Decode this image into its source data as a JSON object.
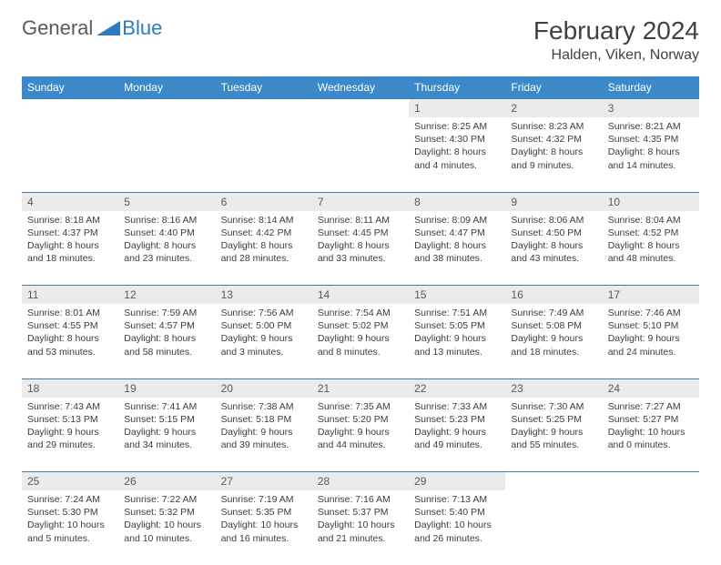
{
  "logo": {
    "general": "General",
    "blue": "Blue"
  },
  "header": {
    "month": "February 2024",
    "location": "Halden, Viken, Norway"
  },
  "weekdays": [
    "Sunday",
    "Monday",
    "Tuesday",
    "Wednesday",
    "Thursday",
    "Friday",
    "Saturday"
  ],
  "colors": {
    "header_bg": "#3b89c9",
    "border": "#3b7db5",
    "daynum_bg": "#ebebeb",
    "logo_blue": "#2b7bbf",
    "text": "#3c3c3c"
  },
  "weeks": [
    [
      null,
      null,
      null,
      null,
      {
        "n": "1",
        "sr": "Sunrise: 8:25 AM",
        "ss": "Sunset: 4:30 PM",
        "d1": "Daylight: 8 hours",
        "d2": "and 4 minutes."
      },
      {
        "n": "2",
        "sr": "Sunrise: 8:23 AM",
        "ss": "Sunset: 4:32 PM",
        "d1": "Daylight: 8 hours",
        "d2": "and 9 minutes."
      },
      {
        "n": "3",
        "sr": "Sunrise: 8:21 AM",
        "ss": "Sunset: 4:35 PM",
        "d1": "Daylight: 8 hours",
        "d2": "and 14 minutes."
      }
    ],
    [
      {
        "n": "4",
        "sr": "Sunrise: 8:18 AM",
        "ss": "Sunset: 4:37 PM",
        "d1": "Daylight: 8 hours",
        "d2": "and 18 minutes."
      },
      {
        "n": "5",
        "sr": "Sunrise: 8:16 AM",
        "ss": "Sunset: 4:40 PM",
        "d1": "Daylight: 8 hours",
        "d2": "and 23 minutes."
      },
      {
        "n": "6",
        "sr": "Sunrise: 8:14 AM",
        "ss": "Sunset: 4:42 PM",
        "d1": "Daylight: 8 hours",
        "d2": "and 28 minutes."
      },
      {
        "n": "7",
        "sr": "Sunrise: 8:11 AM",
        "ss": "Sunset: 4:45 PM",
        "d1": "Daylight: 8 hours",
        "d2": "and 33 minutes."
      },
      {
        "n": "8",
        "sr": "Sunrise: 8:09 AM",
        "ss": "Sunset: 4:47 PM",
        "d1": "Daylight: 8 hours",
        "d2": "and 38 minutes."
      },
      {
        "n": "9",
        "sr": "Sunrise: 8:06 AM",
        "ss": "Sunset: 4:50 PM",
        "d1": "Daylight: 8 hours",
        "d2": "and 43 minutes."
      },
      {
        "n": "10",
        "sr": "Sunrise: 8:04 AM",
        "ss": "Sunset: 4:52 PM",
        "d1": "Daylight: 8 hours",
        "d2": "and 48 minutes."
      }
    ],
    [
      {
        "n": "11",
        "sr": "Sunrise: 8:01 AM",
        "ss": "Sunset: 4:55 PM",
        "d1": "Daylight: 8 hours",
        "d2": "and 53 minutes."
      },
      {
        "n": "12",
        "sr": "Sunrise: 7:59 AM",
        "ss": "Sunset: 4:57 PM",
        "d1": "Daylight: 8 hours",
        "d2": "and 58 minutes."
      },
      {
        "n": "13",
        "sr": "Sunrise: 7:56 AM",
        "ss": "Sunset: 5:00 PM",
        "d1": "Daylight: 9 hours",
        "d2": "and 3 minutes."
      },
      {
        "n": "14",
        "sr": "Sunrise: 7:54 AM",
        "ss": "Sunset: 5:02 PM",
        "d1": "Daylight: 9 hours",
        "d2": "and 8 minutes."
      },
      {
        "n": "15",
        "sr": "Sunrise: 7:51 AM",
        "ss": "Sunset: 5:05 PM",
        "d1": "Daylight: 9 hours",
        "d2": "and 13 minutes."
      },
      {
        "n": "16",
        "sr": "Sunrise: 7:49 AM",
        "ss": "Sunset: 5:08 PM",
        "d1": "Daylight: 9 hours",
        "d2": "and 18 minutes."
      },
      {
        "n": "17",
        "sr": "Sunrise: 7:46 AM",
        "ss": "Sunset: 5:10 PM",
        "d1": "Daylight: 9 hours",
        "d2": "and 24 minutes."
      }
    ],
    [
      {
        "n": "18",
        "sr": "Sunrise: 7:43 AM",
        "ss": "Sunset: 5:13 PM",
        "d1": "Daylight: 9 hours",
        "d2": "and 29 minutes."
      },
      {
        "n": "19",
        "sr": "Sunrise: 7:41 AM",
        "ss": "Sunset: 5:15 PM",
        "d1": "Daylight: 9 hours",
        "d2": "and 34 minutes."
      },
      {
        "n": "20",
        "sr": "Sunrise: 7:38 AM",
        "ss": "Sunset: 5:18 PM",
        "d1": "Daylight: 9 hours",
        "d2": "and 39 minutes."
      },
      {
        "n": "21",
        "sr": "Sunrise: 7:35 AM",
        "ss": "Sunset: 5:20 PM",
        "d1": "Daylight: 9 hours",
        "d2": "and 44 minutes."
      },
      {
        "n": "22",
        "sr": "Sunrise: 7:33 AM",
        "ss": "Sunset: 5:23 PM",
        "d1": "Daylight: 9 hours",
        "d2": "and 49 minutes."
      },
      {
        "n": "23",
        "sr": "Sunrise: 7:30 AM",
        "ss": "Sunset: 5:25 PM",
        "d1": "Daylight: 9 hours",
        "d2": "and 55 minutes."
      },
      {
        "n": "24",
        "sr": "Sunrise: 7:27 AM",
        "ss": "Sunset: 5:27 PM",
        "d1": "Daylight: 10 hours",
        "d2": "and 0 minutes."
      }
    ],
    [
      {
        "n": "25",
        "sr": "Sunrise: 7:24 AM",
        "ss": "Sunset: 5:30 PM",
        "d1": "Daylight: 10 hours",
        "d2": "and 5 minutes."
      },
      {
        "n": "26",
        "sr": "Sunrise: 7:22 AM",
        "ss": "Sunset: 5:32 PM",
        "d1": "Daylight: 10 hours",
        "d2": "and 10 minutes."
      },
      {
        "n": "27",
        "sr": "Sunrise: 7:19 AM",
        "ss": "Sunset: 5:35 PM",
        "d1": "Daylight: 10 hours",
        "d2": "and 16 minutes."
      },
      {
        "n": "28",
        "sr": "Sunrise: 7:16 AM",
        "ss": "Sunset: 5:37 PM",
        "d1": "Daylight: 10 hours",
        "d2": "and 21 minutes."
      },
      {
        "n": "29",
        "sr": "Sunrise: 7:13 AM",
        "ss": "Sunset: 5:40 PM",
        "d1": "Daylight: 10 hours",
        "d2": "and 26 minutes."
      },
      null,
      null
    ]
  ]
}
